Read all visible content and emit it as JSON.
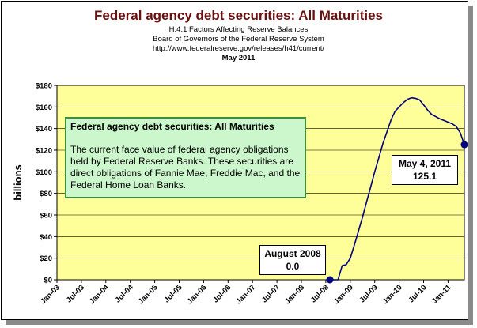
{
  "header": {
    "title": "Federal agency debt securities: All Maturities",
    "line1": "H.4.1 Factors Affecting Reserve Balances",
    "line2": "Board of Governors of the Federal Reserve System",
    "line3": "http://www.federalreserve.gov/releases/h41/current/",
    "line4": "May 2011"
  },
  "info_box": {
    "title": "Federal agency debt securities: All Maturities",
    "body": "The current face value of federal agency obligations held by Federal Reserve Banks. These securities are direct obligations of Fannie Mae, Freddie Mac, and the Federal Home Loan Banks."
  },
  "callouts": {
    "start_date": "August 2008",
    "start_value": "0.0",
    "end_date": "May 4, 2011",
    "end_value": "125.1"
  },
  "colors": {
    "plot_bg": "#ffff99",
    "line": "#000080",
    "info_bg": "#ccf7cc",
    "title": "#6b1010"
  },
  "chart_data": {
    "type": "line",
    "title": "Federal agency debt securities: All Maturities",
    "ylabel": "billions",
    "xlabel": "",
    "ylim": [
      0,
      180
    ],
    "y_ticks": [
      "$0",
      "$20",
      "$40",
      "$60",
      "$80",
      "$100",
      "$120",
      "$140",
      "$160",
      "$180"
    ],
    "x_ticks": [
      "Jan-03",
      "Jul-03",
      "Jan-04",
      "Jul-04",
      "Jan-05",
      "Jul-05",
      "Jan-06",
      "Jul-06",
      "Jan-07",
      "Jul-07",
      "Jan-08",
      "Jul-08",
      "Jan-09",
      "Jul-09",
      "Jan-10",
      "Jul-10",
      "Jan-11"
    ],
    "x_range": [
      "2003-01",
      "2011-05"
    ],
    "grid": "horizontal",
    "series": [
      {
        "x": [
          "2008-08",
          "2008-10",
          "2008-11",
          "2008-12",
          "2009-01",
          "2009-02",
          "2009-03",
          "2009-04",
          "2009-05",
          "2009-06",
          "2009-07",
          "2009-08",
          "2009-09",
          "2009-10",
          "2009-11",
          "2009-12",
          "2010-01",
          "2010-02",
          "2010-03",
          "2010-04",
          "2010-05",
          "2010-06",
          "2010-07",
          "2010-08",
          "2010-09",
          "2010-10",
          "2010-11",
          "2010-12",
          "2011-01",
          "2011-02",
          "2011-03",
          "2011-04",
          "2011-05"
        ],
        "values": [
          0.0,
          0.0,
          13.0,
          14.0,
          20.0,
          32.0,
          45.0,
          58.0,
          72.0,
          86.0,
          100.0,
          113.0,
          126.0,
          137.0,
          148.0,
          156.0,
          160.0,
          164.0,
          167.0,
          168.5,
          168.0,
          166.5,
          162.0,
          157.0,
          153.0,
          151.0,
          149.0,
          147.5,
          146.0,
          144.5,
          142.0,
          136.0,
          125.1
        ]
      }
    ],
    "markers": [
      {
        "x": "2008-08",
        "value": 0.0
      },
      {
        "x": "2011-05",
        "value": 125.1
      }
    ]
  }
}
